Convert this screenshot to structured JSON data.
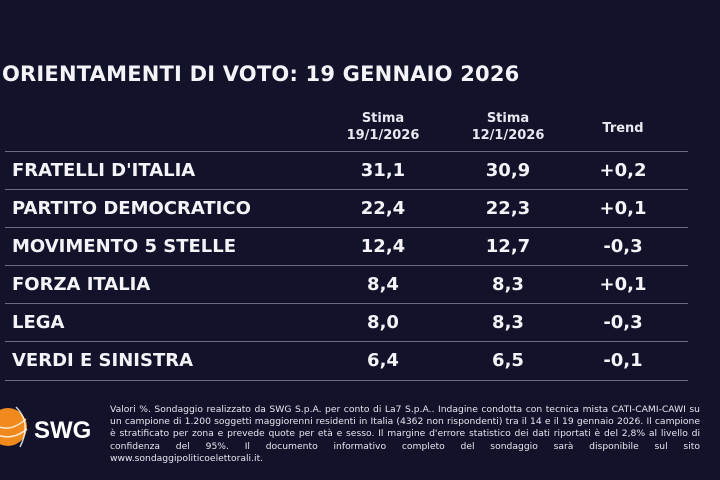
{
  "title": "ORIENTAMENTI DI VOTO: 19 GENNAIO 2026",
  "chart_data": {
    "type": "table",
    "columns": [
      {
        "line1": "Stima",
        "line2": "19/1/2026"
      },
      {
        "line1": "Stima",
        "line2": "12/1/2026"
      },
      {
        "line1": "Trend",
        "line2": ""
      }
    ],
    "rows": [
      {
        "party": "FRATELLI D'ITALIA",
        "current": "31,1",
        "previous": "30,9",
        "trend": "+0,2"
      },
      {
        "party": "PARTITO DEMOCRATICO",
        "current": "22,4",
        "previous": "22,3",
        "trend": "+0,1"
      },
      {
        "party": "MOVIMENTO 5 STELLE",
        "current": "12,4",
        "previous": "12,7",
        "trend": "-0,3"
      },
      {
        "party": "FORZA ITALIA",
        "current": "8,4",
        "previous": "8,3",
        "trend": "+0,1"
      },
      {
        "party": "LEGA",
        "current": "8,0",
        "previous": "8,3",
        "trend": "-0,3"
      },
      {
        "party": "VERDI E SINISTRA",
        "current": "6,4",
        "previous": "6,5",
        "trend": "-0,1"
      }
    ]
  },
  "logo": {
    "text": "SWG",
    "color": "#f08a1c"
  },
  "note": "Valori %. Sondaggio realizzato da SWG S.p.A. per conto di La7 S.p.A.. Indagine condotta con tecnica mista CATI-CAMI-CAWI su un campione di 1.200 soggetti maggiorenni residenti in Italia (4362 non rispondenti) tra il 14 e il 19 gennaio 2026. Il campione è stratificato per zona e prevede quote per età e sesso. Il margine d'errore statistico dei dati riportati è del 2,8% al livello di confidenza del 95%. Il documento informativo completo del sondaggio sarà disponibile sul sito www.sondaggipoliticoelettorali.it."
}
